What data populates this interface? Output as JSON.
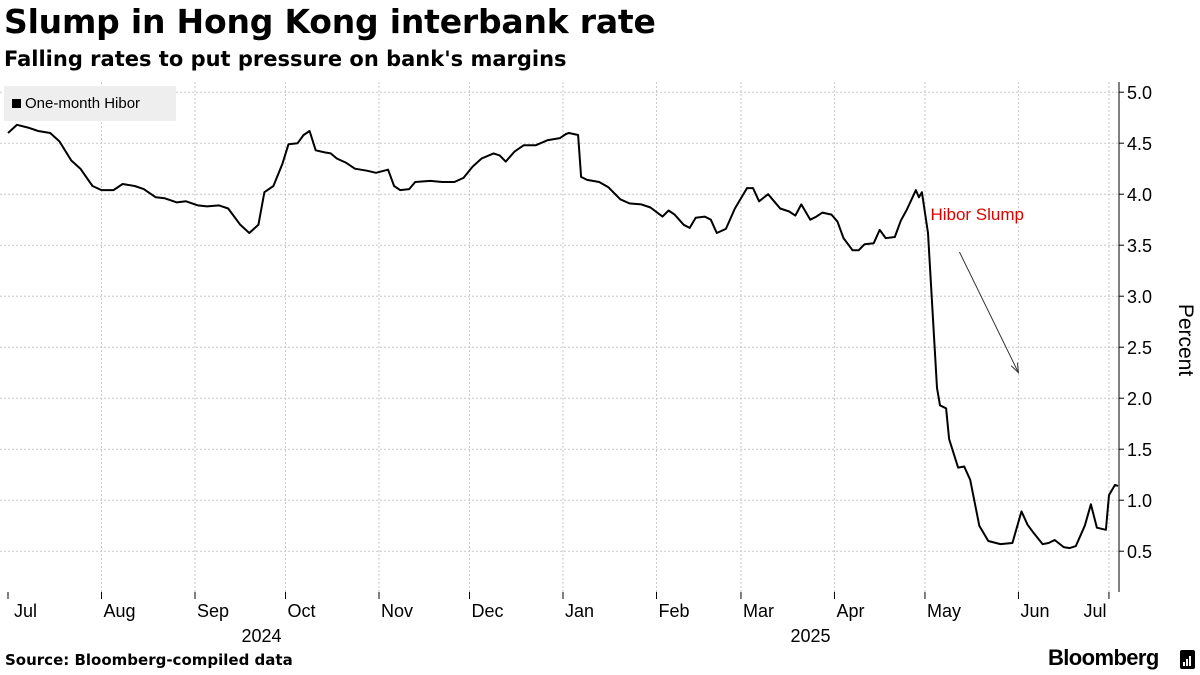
{
  "title": "Slump in Hong Kong interbank rate",
  "subtitle": "Falling rates to put pressure on bank's margins",
  "source": "Source: Bloomberg-compiled data",
  "brand": "Bloomberg",
  "colors": {
    "line": "#000000",
    "annotation": "#e00000",
    "grid": "#c8c8c8",
    "legend_bg": "#eeeeee"
  },
  "chart_data": {
    "type": "line",
    "title": "Slump in Hong Kong interbank rate",
    "subtitle": "Falling rates to put pressure on bank's margins",
    "xlabel": "",
    "ylabel": "Percent",
    "ylim": [
      0.1,
      5.1
    ],
    "yticks": [
      0.5,
      1.0,
      1.5,
      2.0,
      2.5,
      3.0,
      3.5,
      4.0,
      4.5,
      5.0
    ],
    "ytick_labels": [
      "0.5",
      "1.0",
      "1.5",
      "2.0",
      "2.5",
      "3.0",
      "3.5",
      "4.0",
      "4.5",
      "5.0"
    ],
    "y_axis_side": "right",
    "grid": true,
    "legend_position": "top-left",
    "xlim": [
      "2024-07-01",
      "2025-07-04"
    ],
    "x_ticks": [
      {
        "label": "Jul",
        "date": "2024-07-01"
      },
      {
        "label": "Aug",
        "date": "2024-08-01"
      },
      {
        "label": "Sep",
        "date": "2024-09-01"
      },
      {
        "label": "Oct",
        "date": "2024-10-01"
      },
      {
        "label": "Nov",
        "date": "2024-11-01"
      },
      {
        "label": "Dec",
        "date": "2024-12-01"
      },
      {
        "label": "Jan",
        "date": "2025-01-01"
      },
      {
        "label": "Feb",
        "date": "2025-02-01"
      },
      {
        "label": "Mar",
        "date": "2025-03-01"
      },
      {
        "label": "Apr",
        "date": "2025-04-01"
      },
      {
        "label": "May",
        "date": "2025-05-01"
      },
      {
        "label": "Jun",
        "date": "2025-06-01"
      },
      {
        "label": "Jul",
        "date": "2025-07-01"
      }
    ],
    "year_labels": [
      {
        "label": "2024",
        "date": "2024-10-01"
      },
      {
        "label": "2025",
        "date": "2025-04-01"
      }
    ],
    "annotations": [
      {
        "text": "Hibor Slump",
        "point_to": {
          "date": "2025-06-01",
          "y": 2.25
        }
      }
    ],
    "series": [
      {
        "name": "One-month Hibor",
        "points": [
          [
            "2024-07-01",
            4.6
          ],
          [
            "2024-07-04",
            4.68
          ],
          [
            "2024-07-08",
            4.65
          ],
          [
            "2024-07-11",
            4.62
          ],
          [
            "2024-07-15",
            4.6
          ],
          [
            "2024-07-18",
            4.52
          ],
          [
            "2024-07-22",
            4.33
          ],
          [
            "2024-07-25",
            4.25
          ],
          [
            "2024-07-29",
            4.08
          ],
          [
            "2024-08-01",
            4.04
          ],
          [
            "2024-08-05",
            4.04
          ],
          [
            "2024-08-08",
            4.1
          ],
          [
            "2024-08-12",
            4.08
          ],
          [
            "2024-08-15",
            4.05
          ],
          [
            "2024-08-19",
            3.97
          ],
          [
            "2024-08-22",
            3.96
          ],
          [
            "2024-08-26",
            3.92
          ],
          [
            "2024-08-29",
            3.93
          ],
          [
            "2024-09-02",
            3.89
          ],
          [
            "2024-09-05",
            3.88
          ],
          [
            "2024-09-09",
            3.89
          ],
          [
            "2024-09-12",
            3.86
          ],
          [
            "2024-09-16",
            3.7
          ],
          [
            "2024-09-19",
            3.62
          ],
          [
            "2024-09-22",
            3.7
          ],
          [
            "2024-09-24",
            4.02
          ],
          [
            "2024-09-27",
            4.08
          ],
          [
            "2024-09-30",
            4.3
          ],
          [
            "2024-10-02",
            4.49
          ],
          [
            "2024-10-05",
            4.5
          ],
          [
            "2024-10-07",
            4.58
          ],
          [
            "2024-10-09",
            4.62
          ],
          [
            "2024-10-11",
            4.43
          ],
          [
            "2024-10-14",
            4.41
          ],
          [
            "2024-10-16",
            4.4
          ],
          [
            "2024-10-18",
            4.35
          ],
          [
            "2024-10-21",
            4.31
          ],
          [
            "2024-10-24",
            4.25
          ],
          [
            "2024-10-28",
            4.23
          ],
          [
            "2024-10-31",
            4.21
          ],
          [
            "2024-11-04",
            4.24
          ],
          [
            "2024-11-06",
            4.08
          ],
          [
            "2024-11-08",
            4.04
          ],
          [
            "2024-11-11",
            4.05
          ],
          [
            "2024-11-13",
            4.12
          ],
          [
            "2024-11-18",
            4.13
          ],
          [
            "2024-11-22",
            4.12
          ],
          [
            "2024-11-26",
            4.12
          ],
          [
            "2024-11-29",
            4.16
          ],
          [
            "2024-12-02",
            4.27
          ],
          [
            "2024-12-05",
            4.35
          ],
          [
            "2024-12-09",
            4.4
          ],
          [
            "2024-12-11",
            4.38
          ],
          [
            "2024-12-13",
            4.32
          ],
          [
            "2024-12-16",
            4.42
          ],
          [
            "2024-12-19",
            4.48
          ],
          [
            "2024-12-23",
            4.48
          ],
          [
            "2024-12-27",
            4.53
          ],
          [
            "2024-12-31",
            4.55
          ],
          [
            "2025-01-02",
            4.59
          ],
          [
            "2025-01-03",
            4.6
          ],
          [
            "2025-01-06",
            4.58
          ],
          [
            "2025-01-07",
            4.17
          ],
          [
            "2025-01-09",
            4.14
          ],
          [
            "2025-01-13",
            4.12
          ],
          [
            "2025-01-16",
            4.07
          ],
          [
            "2025-01-20",
            3.95
          ],
          [
            "2025-01-23",
            3.91
          ],
          [
            "2025-01-27",
            3.9
          ],
          [
            "2025-01-30",
            3.87
          ],
          [
            "2025-02-03",
            3.78
          ],
          [
            "2025-02-05",
            3.84
          ],
          [
            "2025-02-07",
            3.8
          ],
          [
            "2025-02-10",
            3.7
          ],
          [
            "2025-02-12",
            3.67
          ],
          [
            "2025-02-14",
            3.77
          ],
          [
            "2025-02-17",
            3.78
          ],
          [
            "2025-02-19",
            3.75
          ],
          [
            "2025-02-21",
            3.62
          ],
          [
            "2025-02-24",
            3.66
          ],
          [
            "2025-02-27",
            3.86
          ],
          [
            "2025-03-03",
            4.06
          ],
          [
            "2025-03-05",
            4.06
          ],
          [
            "2025-03-07",
            3.93
          ],
          [
            "2025-03-10",
            4.0
          ],
          [
            "2025-03-12",
            3.93
          ],
          [
            "2025-03-14",
            3.86
          ],
          [
            "2025-03-17",
            3.83
          ],
          [
            "2025-03-19",
            3.79
          ],
          [
            "2025-03-21",
            3.9
          ],
          [
            "2025-03-24",
            3.75
          ],
          [
            "2025-03-26",
            3.78
          ],
          [
            "2025-03-28",
            3.82
          ],
          [
            "2025-03-31",
            3.8
          ],
          [
            "2025-04-02",
            3.73
          ],
          [
            "2025-04-04",
            3.57
          ],
          [
            "2025-04-07",
            3.45
          ],
          [
            "2025-04-09",
            3.45
          ],
          [
            "2025-04-11",
            3.51
          ],
          [
            "2025-04-14",
            3.52
          ],
          [
            "2025-04-16",
            3.65
          ],
          [
            "2025-04-18",
            3.57
          ],
          [
            "2025-04-21",
            3.58
          ],
          [
            "2025-04-23",
            3.74
          ],
          [
            "2025-04-25",
            3.85
          ],
          [
            "2025-04-28",
            4.04
          ],
          [
            "2025-04-29",
            3.97
          ],
          [
            "2025-04-30",
            4.02
          ],
          [
            "2025-05-02",
            3.62
          ],
          [
            "2025-05-05",
            2.1
          ],
          [
            "2025-05-06",
            1.93
          ],
          [
            "2025-05-08",
            1.9
          ],
          [
            "2025-05-09",
            1.6
          ],
          [
            "2025-05-12",
            1.32
          ],
          [
            "2025-05-14",
            1.33
          ],
          [
            "2025-05-16",
            1.2
          ],
          [
            "2025-05-19",
            0.75
          ],
          [
            "2025-05-22",
            0.6
          ],
          [
            "2025-05-26",
            0.57
          ],
          [
            "2025-05-30",
            0.58
          ],
          [
            "2025-06-02",
            0.89
          ],
          [
            "2025-06-04",
            0.76
          ],
          [
            "2025-06-06",
            0.68
          ],
          [
            "2025-06-09",
            0.57
          ],
          [
            "2025-06-11",
            0.58
          ],
          [
            "2025-06-13",
            0.61
          ],
          [
            "2025-06-16",
            0.54
          ],
          [
            "2025-06-18",
            0.53
          ],
          [
            "2025-06-20",
            0.55
          ],
          [
            "2025-06-23",
            0.75
          ],
          [
            "2025-06-25",
            0.96
          ],
          [
            "2025-06-27",
            0.73
          ],
          [
            "2025-06-30",
            0.71
          ],
          [
            "2025-07-01",
            1.05
          ],
          [
            "2025-07-02",
            1.1
          ],
          [
            "2025-07-03",
            1.15
          ],
          [
            "2025-07-04",
            1.14
          ]
        ]
      }
    ]
  }
}
